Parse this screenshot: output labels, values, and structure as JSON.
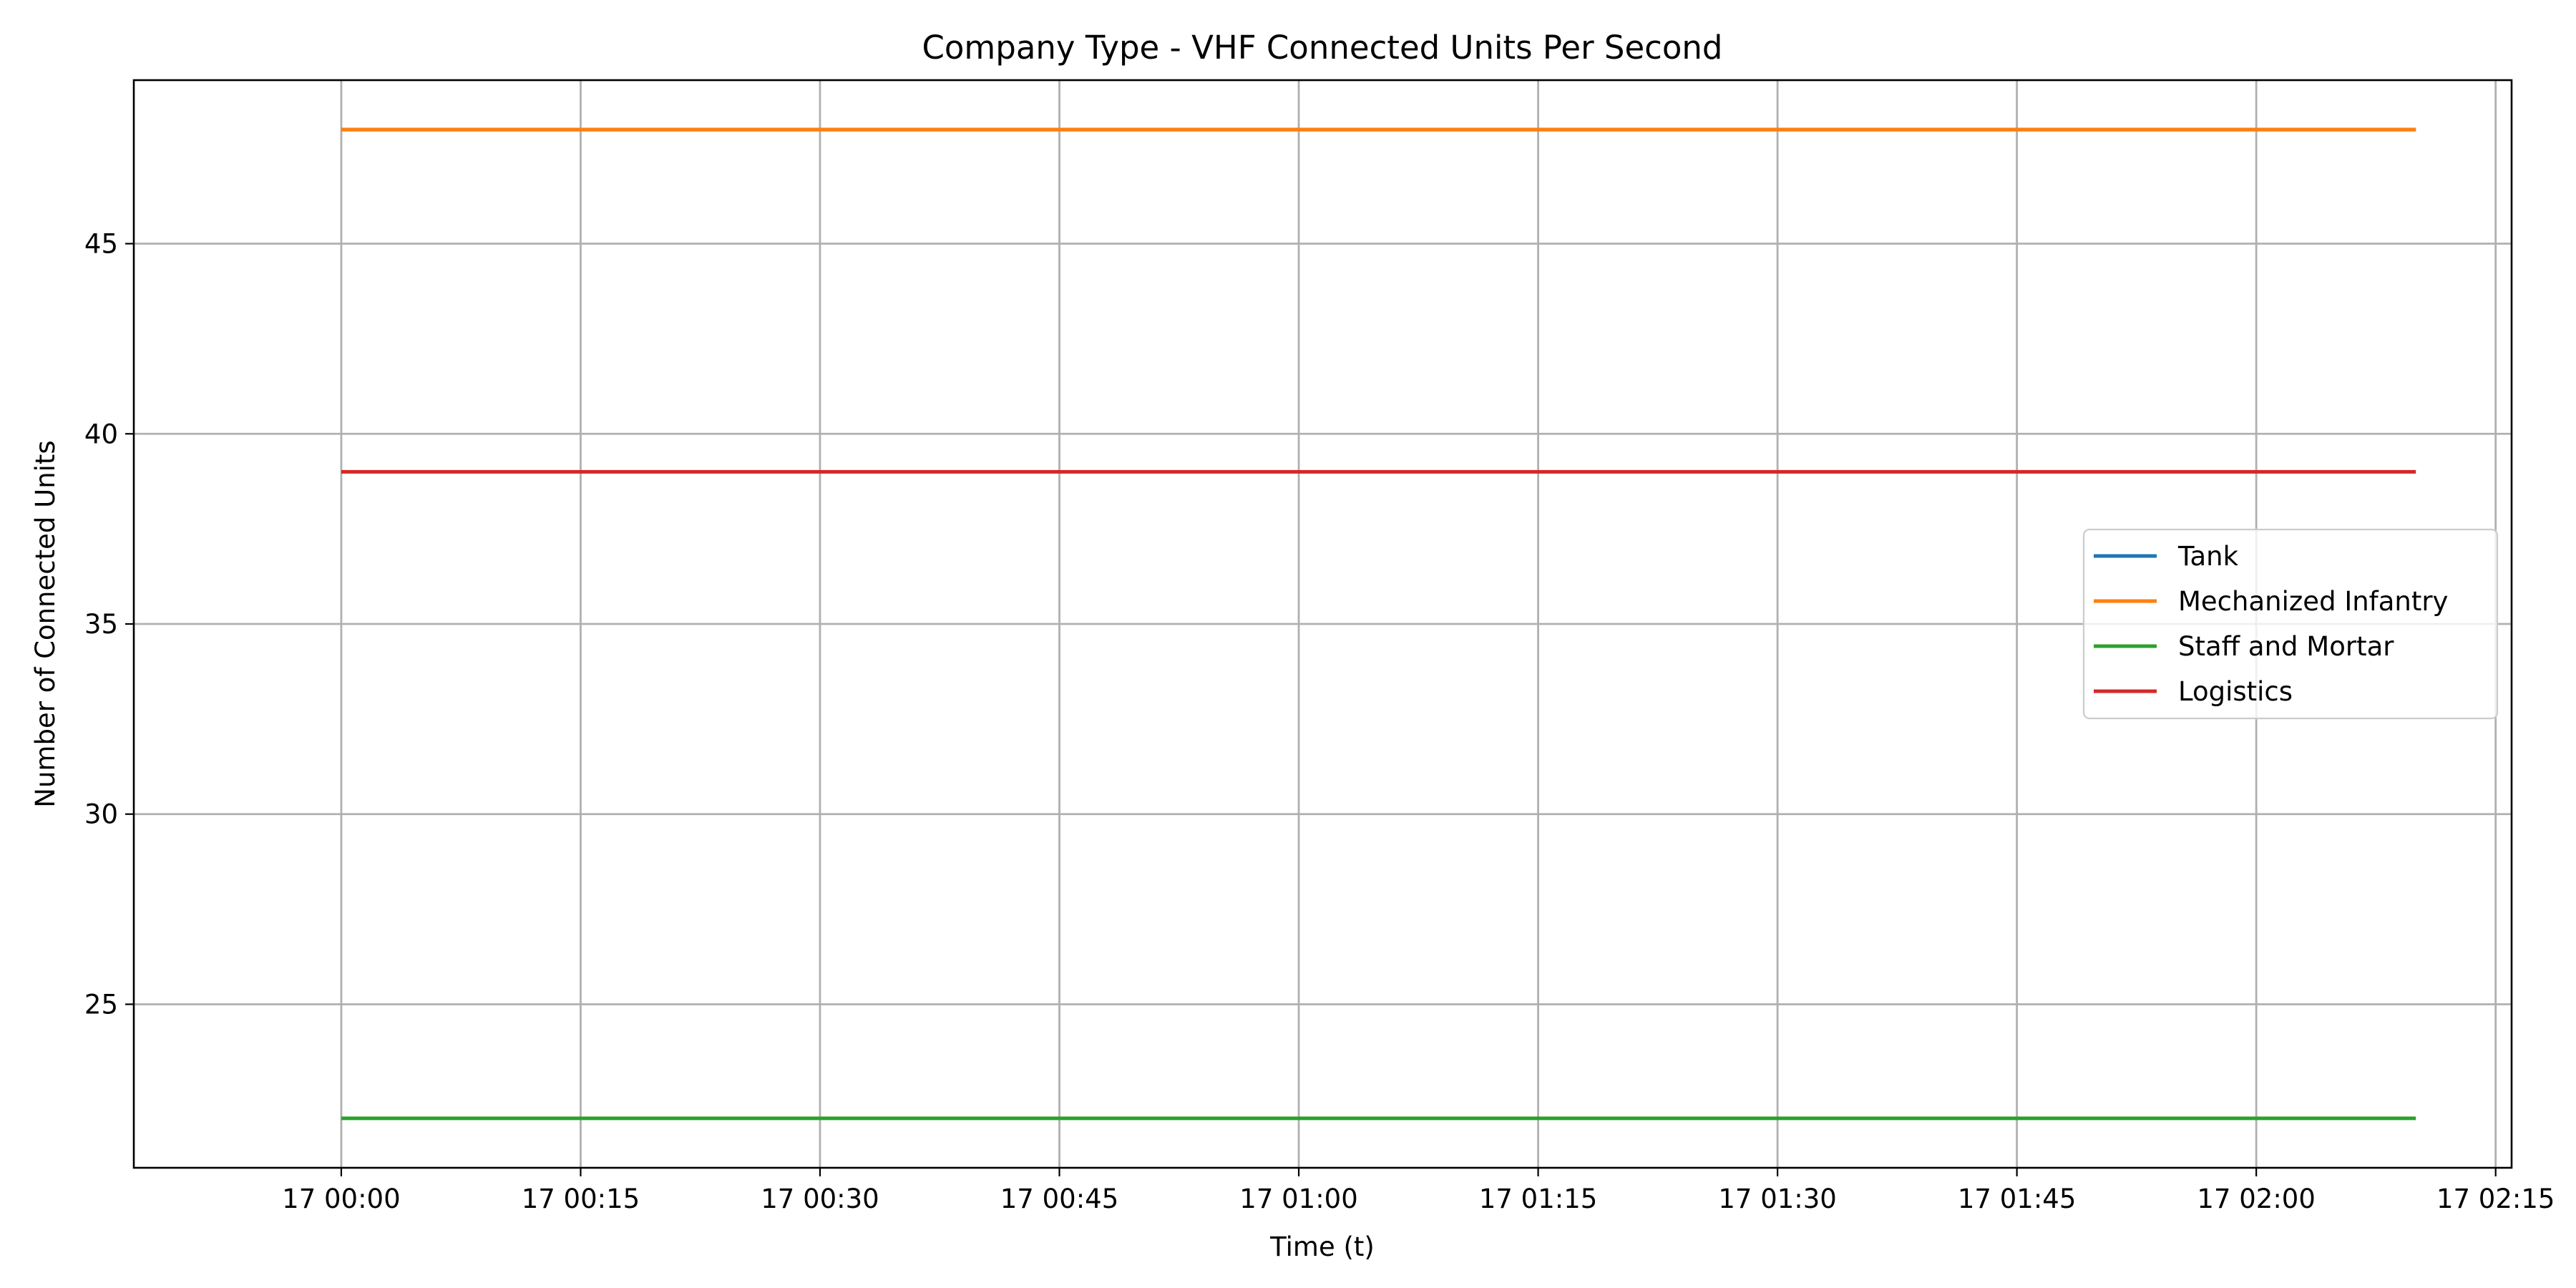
{
  "chart_data": {
    "type": "line",
    "title": "Company Type - VHF Connected Units Per Second",
    "xlabel": "Time (t)",
    "ylabel": "Number of Connected Units",
    "x_start": "17 00:00",
    "x_end": "17 02:10",
    "xlim": [
      "16 23:47",
      "17 02:16"
    ],
    "ylim": [
      20.7,
      49.3
    ],
    "x_ticks": [
      "17 00:00",
      "17 00:15",
      "17 00:30",
      "17 00:45",
      "17 01:00",
      "17 01:15",
      "17 01:30",
      "17 01:45",
      "17 02:00",
      "17 02:15"
    ],
    "y_ticks": [
      25,
      30,
      35,
      40,
      45
    ],
    "grid": true,
    "legend_position": "center-right",
    "series": [
      {
        "name": "Tank",
        "color": "#1f77b4",
        "x": [
          "17 00:00",
          "17 02:10"
        ],
        "values": [
          48,
          48
        ]
      },
      {
        "name": "Mechanized Infantry",
        "color": "#ff7f0e",
        "x": [
          "17 00:00",
          "17 02:10"
        ],
        "values": [
          48,
          48
        ]
      },
      {
        "name": "Staff and Mortar",
        "color": "#2ca02c",
        "x": [
          "17 00:00",
          "17 02:10"
        ],
        "values": [
          22,
          22
        ]
      },
      {
        "name": "Logistics",
        "color": "#d62728",
        "x": [
          "17 00:00",
          "17 02:10"
        ],
        "values": [
          39,
          39
        ]
      }
    ]
  }
}
